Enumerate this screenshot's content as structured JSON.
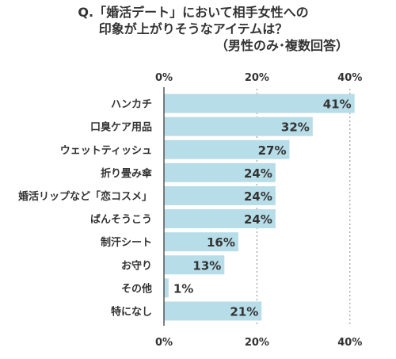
{
  "colors": {
    "bar": "#b7dde8",
    "axis": "#555555",
    "grid": "#888888",
    "text": "#333333"
  },
  "chart_data": {
    "type": "bar",
    "orientation": "horizontal",
    "title_lines": [
      "Q.「婚活デート」において相手女性への",
      "印象が上がりそうなアイテムは？",
      "（男性のみ･複数回答）"
    ],
    "categories": [
      "ハンカチ",
      "口臭ケア用品",
      "ウェットティッシュ",
      "折り畳み傘",
      "婚活リップなど「恋コスメ」",
      "ばんそうこう",
      "制汗シート",
      "お守り",
      "その他",
      "特になし"
    ],
    "values": [
      41,
      32,
      27,
      24,
      24,
      24,
      16,
      13,
      1,
      21
    ],
    "value_labels": [
      "41%",
      "32%",
      "27%",
      "24%",
      "24%",
      "24%",
      "16%",
      "13%",
      "1%",
      "21%"
    ],
    "xlim": [
      0,
      45
    ],
    "ticks": [
      0,
      20,
      40
    ],
    "tick_labels": [
      "0%",
      "20%",
      "40%"
    ],
    "grid": true,
    "xlabel": "",
    "ylabel": ""
  }
}
